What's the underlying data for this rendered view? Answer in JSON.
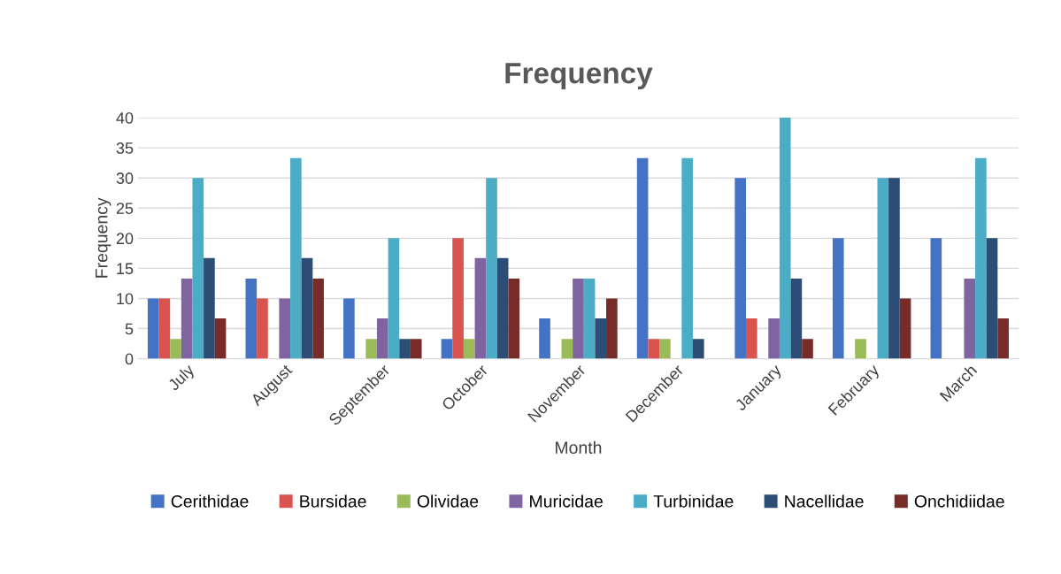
{
  "chart_data": {
    "type": "bar",
    "title": "Frequency",
    "xlabel": "Month",
    "ylabel": "Frequency",
    "categories": [
      "July",
      "August",
      "September",
      "October",
      "November",
      "December",
      "January",
      "February",
      "March"
    ],
    "series": [
      {
        "name": "Cerithidae",
        "color": "#4472c4",
        "values": [
          10,
          13.3,
          10,
          3.3,
          6.7,
          33.3,
          30,
          20,
          20
        ]
      },
      {
        "name": "Bursidae",
        "color": "#d9534f",
        "values": [
          10,
          10,
          0,
          20,
          0,
          3.3,
          6.7,
          0,
          0
        ]
      },
      {
        "name": "Olividae",
        "color": "#9bbb59",
        "values": [
          3.3,
          0,
          3.3,
          3.3,
          3.3,
          3.3,
          0,
          3.3,
          0
        ]
      },
      {
        "name": "Muricidae",
        "color": "#8064a2",
        "values": [
          13.3,
          10,
          6.7,
          16.7,
          13.3,
          0,
          6.7,
          0,
          13.3
        ]
      },
      {
        "name": "Turbinidae",
        "color": "#4bacc6",
        "values": [
          30,
          33.3,
          20,
          30,
          13.3,
          33.3,
          40,
          30,
          33.3
        ]
      },
      {
        "name": "Nacellidae",
        "color": "#2c4d75",
        "values": [
          16.7,
          16.7,
          3.3,
          16.7,
          6.7,
          3.3,
          13.3,
          30,
          20
        ]
      },
      {
        "name": "Onchidiidae",
        "color": "#772c2a",
        "values": [
          6.7,
          13.3,
          3.3,
          13.3,
          10,
          0,
          3.3,
          10,
          6.7
        ]
      }
    ],
    "ylim": [
      0,
      40
    ],
    "yticks": [
      0,
      5,
      10,
      15,
      20,
      25,
      30,
      35,
      40
    ],
    "grid": "y",
    "legend": "bottom"
  }
}
